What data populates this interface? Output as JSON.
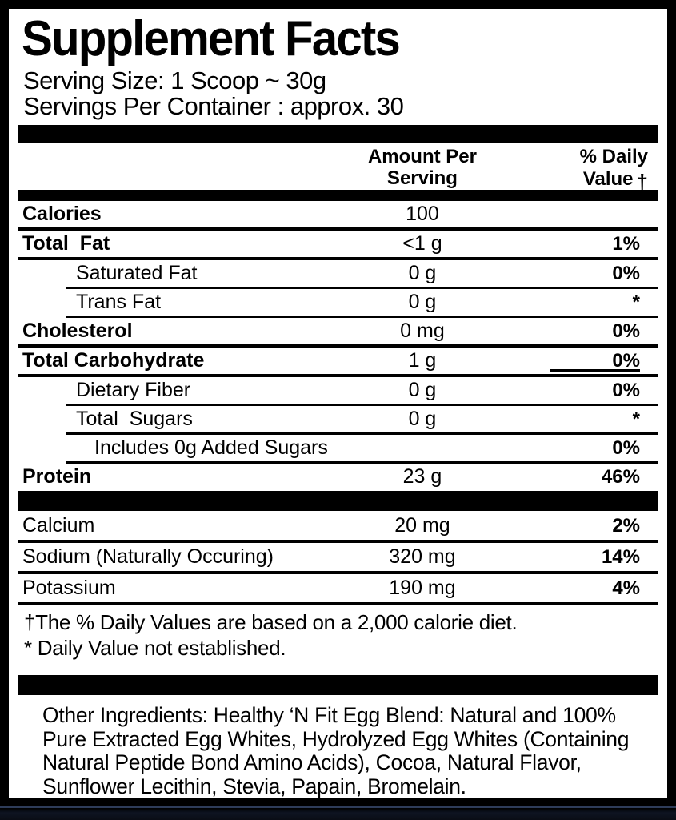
{
  "label": {
    "title": "Supplement Facts",
    "serving_size": "Serving Size: 1 Scoop ~ 30g",
    "servings_per_container": "Servings Per Container : approx. 30",
    "columns": {
      "amount_line1": "Amount Per",
      "amount_line2": "Serving",
      "dv_line1": "% Daily",
      "dv_line2": "Value",
      "dagger": "†"
    },
    "main_rows": [
      {
        "key": "calories",
        "name": "Calories",
        "amount": "100",
        "dv": "",
        "bold": true,
        "indent": 0,
        "sep": "full"
      },
      {
        "key": "total-fat",
        "name": "Total  Fat",
        "amount": "<1 g",
        "dv": "1%",
        "bold": true,
        "indent": 0,
        "sep": "full"
      },
      {
        "key": "saturated-fat",
        "name": "Saturated Fat",
        "amount": "0 g",
        "dv": "0%",
        "bold": false,
        "indent": 1,
        "sep": "indent"
      },
      {
        "key": "trans-fat",
        "name": "Trans Fat",
        "amount": "0 g",
        "dv": "*",
        "bold": false,
        "indent": 1,
        "sep": "indent"
      },
      {
        "key": "cholesterol",
        "name": "Cholesterol",
        "amount": "0 mg",
        "dv": "0%",
        "bold": true,
        "indent": 0,
        "sep": "full"
      },
      {
        "key": "total-carbohydrate",
        "name": "Total Carbohydrate",
        "amount": "1 g",
        "dv": "0%",
        "bold": true,
        "indent": 0,
        "sep": "full",
        "dv_underline": true
      },
      {
        "key": "dietary-fiber",
        "name": "Dietary Fiber",
        "amount": "0 g",
        "dv": "0%",
        "bold": false,
        "indent": 1,
        "sep": "indent"
      },
      {
        "key": "total-sugars",
        "name": "Total  Sugars",
        "amount": "0 g",
        "dv": "*",
        "bold": false,
        "indent": 1,
        "sep": "indent"
      },
      {
        "key": "added-sugars",
        "name": "Includes 0g Added Sugars",
        "amount": "",
        "dv": "0%",
        "bold": false,
        "indent": 2,
        "sep": "indent"
      },
      {
        "key": "protein",
        "name": "Protein",
        "amount": "23 g",
        "dv": "46%",
        "bold": true,
        "indent": 0,
        "sep": "none"
      }
    ],
    "mineral_rows": [
      {
        "key": "calcium",
        "name": "Calcium",
        "amount": "20 mg",
        "dv": "2%",
        "bold": false,
        "indent": 0,
        "sep": "full"
      },
      {
        "key": "sodium",
        "name": "Sodium (Naturally Occuring)",
        "amount": "320 mg",
        "dv": "14%",
        "bold": false,
        "indent": 0,
        "sep": "full"
      },
      {
        "key": "potassium",
        "name": "Potassium",
        "amount": "190 mg",
        "dv": "4%",
        "bold": false,
        "indent": 0,
        "sep": "full"
      }
    ],
    "footnotes": {
      "daily_values": "†The % Daily Values are based on a 2,000 calorie diet.",
      "not_established": "* Daily Value not established."
    },
    "other_ingredients": "Other Ingredients: Healthy ‘N Fit Egg Blend: Natural and 100% Pure Extracted Egg Whites, Hydrolyzed Egg Whites (Containing Natural Peptide Bond Amino Acids), Cocoa, Natural Flavor, Sunflower Lecithin, Stevia, Papain, Bromelain.",
    "colors": {
      "text": "#000000",
      "background": "#ffffff",
      "frame": "#000000",
      "bottom_strip": "#0e1422"
    }
  }
}
